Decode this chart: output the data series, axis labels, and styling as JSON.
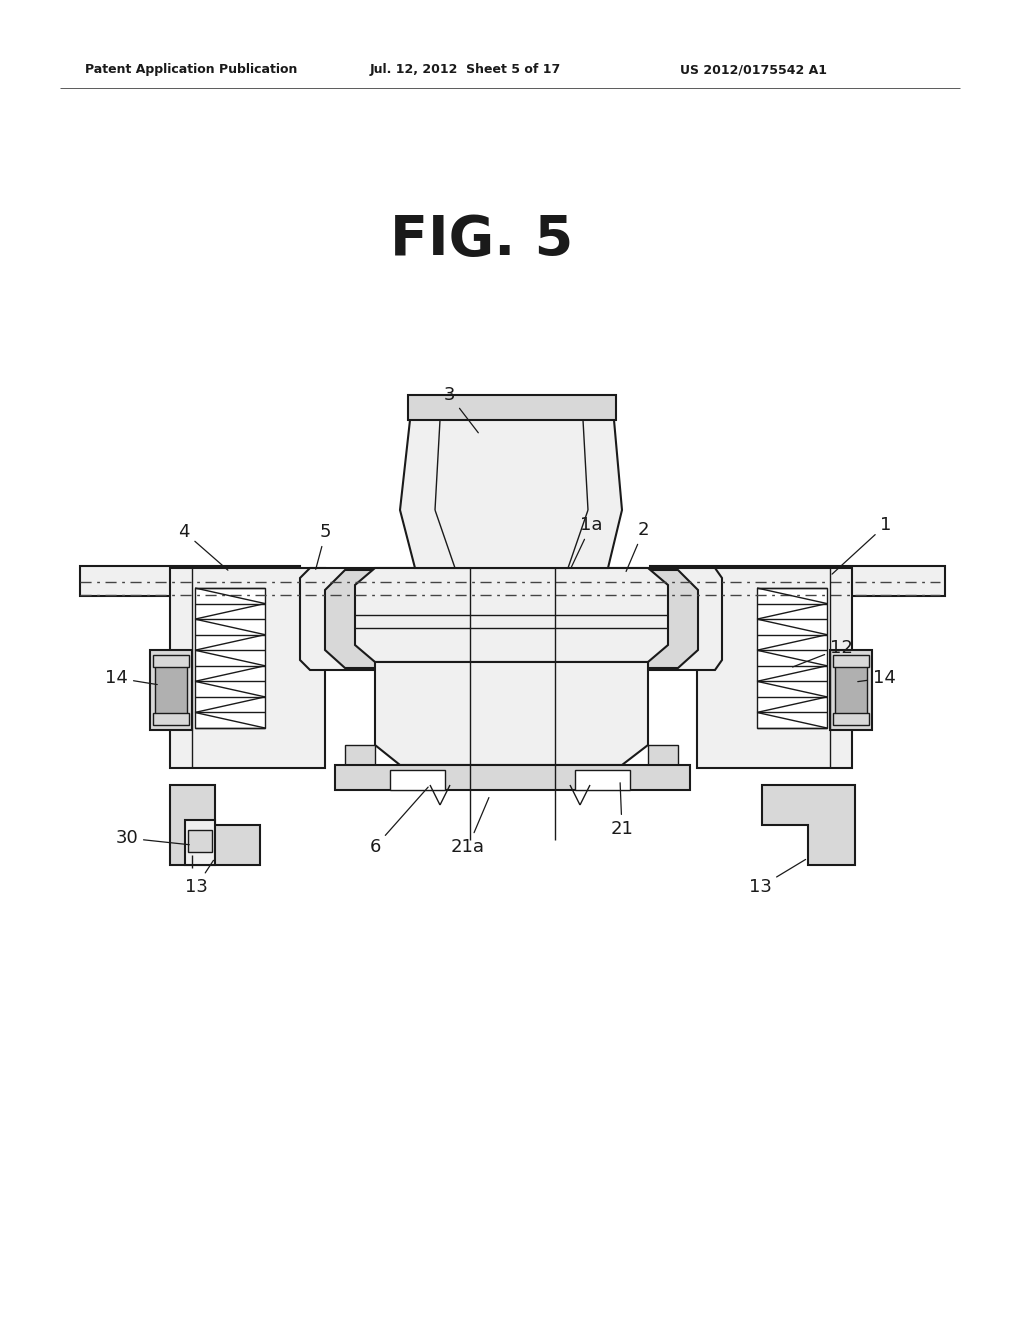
{
  "bg": "#ffffff",
  "lc": "#1a1a1a",
  "header_left": "Patent Application Publication",
  "header_mid": "Jul. 12, 2012  Sheet 5 of 17",
  "header_right": "US 2012/0175542 A1",
  "fig_title": "FIG. 5",
  "fs_header": 9,
  "fs_fig": 40,
  "fs_label": 13,
  "lw_main": 1.5,
  "lw_thin": 1.0,
  "lw_thick": 2.0
}
